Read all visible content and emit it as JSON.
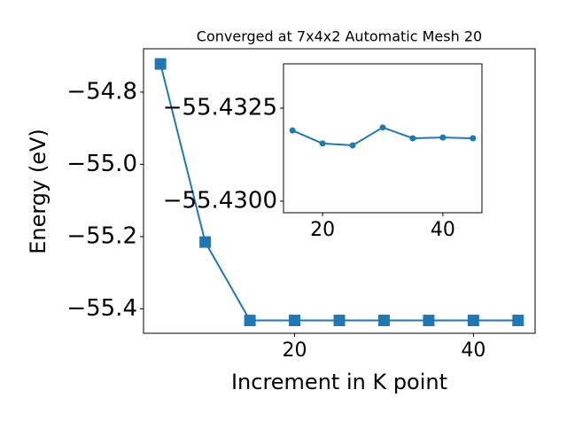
{
  "chart_data": [
    {
      "type": "line",
      "title": "Converged at 7x4x2 Automatic Mesh 20",
      "xlabel": "Increment in K point",
      "ylabel": "Energy (eV)",
      "x": [
        5,
        10,
        15,
        20,
        25,
        30,
        35,
        40,
        45
      ],
      "series": [
        {
          "color": "#1f77b4",
          "marker": "square",
          "values": [
            -54.722,
            -55.215,
            -55.432,
            -55.432,
            -55.432,
            -55.432,
            -55.432,
            -55.432,
            -55.432
          ]
        }
      ],
      "xlim": [
        3.1,
        46.9
      ],
      "xticks": [
        20,
        40
      ],
      "ylim": [
        -55.4675,
        -54.68
      ],
      "yticks": [
        {
          "value": -54.8,
          "label": "−54.8"
        },
        {
          "value": -55.0,
          "label": "−55.0"
        },
        {
          "value": -55.2,
          "label": "−55.2"
        },
        {
          "value": -55.4,
          "label": "−55.4"
        }
      ]
    },
    {
      "type": "line",
      "x": [
        15,
        20,
        25,
        30,
        35,
        40,
        45
      ],
      "series": [
        {
          "color": "#1f77b4",
          "marker": "circle",
          "values": [
            -55.4319,
            -55.43155,
            -55.4315,
            -55.43198,
            -55.43169,
            -55.43171,
            -55.43169
          ]
        }
      ],
      "xlim": [
        13.5,
        46.5
      ],
      "xticks": [
        20,
        40
      ],
      "ylim": [
        -55.42969,
        -55.43369
      ],
      "yticks": [
        {
          "value": -55.4325,
          "label": "−55.4325"
        },
        {
          "value": -55.43,
          "label": "−55.4300"
        }
      ]
    }
  ]
}
